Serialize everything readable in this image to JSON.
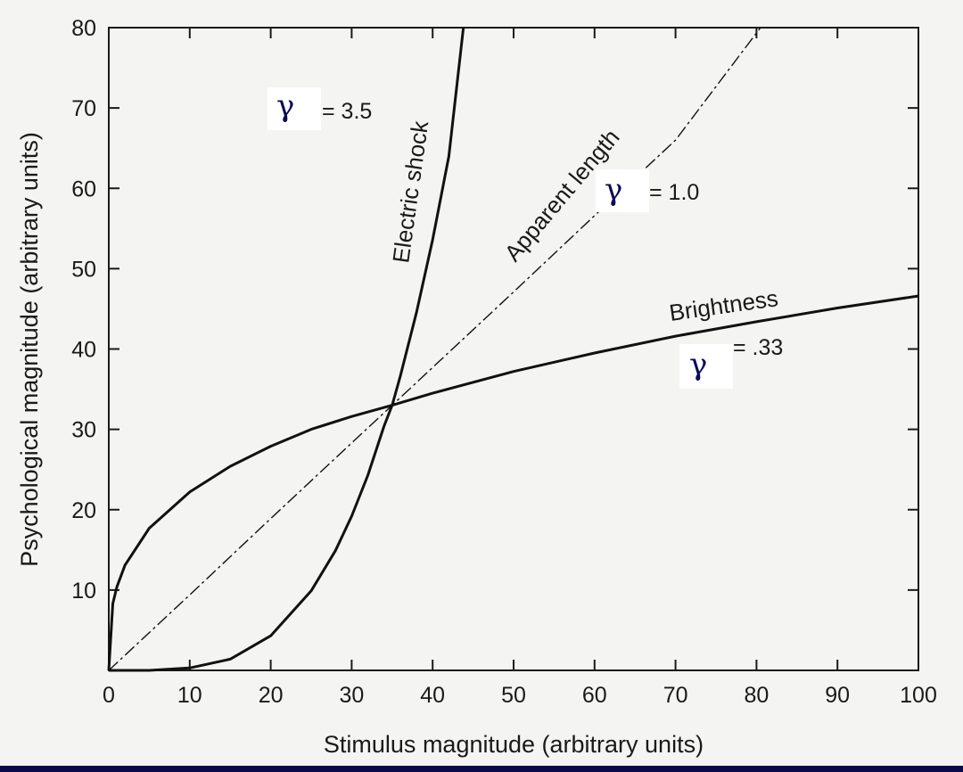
{
  "chart_data": {
    "type": "line",
    "xlabel": "Stimulus magnitude (arbitrary units)",
    "ylabel": "Psychological magnitude (arbitrary units)",
    "xlim": [
      0,
      100
    ],
    "ylim": [
      0,
      80
    ],
    "x_ticks": [
      0,
      10,
      20,
      30,
      40,
      50,
      60,
      70,
      80,
      90,
      100
    ],
    "y_ticks": [
      10,
      20,
      30,
      40,
      50,
      60,
      70,
      80
    ],
    "x_tick_labels": [
      "0",
      "10",
      "20",
      "30",
      "40",
      "50",
      "60",
      "70",
      "80",
      "90",
      "100"
    ],
    "y_tick_labels": [
      "10",
      "20",
      "30",
      "40",
      "50",
      "60",
      "70",
      "80"
    ],
    "grid": false,
    "series": [
      {
        "name": "Electric shock",
        "gamma_symbol": "γ",
        "gamma_value": "= 3.5",
        "exponent": 3.5,
        "style": "solid",
        "x": [
          0,
          5,
          10,
          15,
          20,
          25,
          28,
          30,
          32,
          34,
          35,
          36,
          38,
          40,
          42,
          43.8
        ],
        "y": [
          0,
          0.0,
          0.3,
          1.4,
          4.3,
          9.9,
          14.9,
          19.2,
          24.3,
          30.4,
          33.0,
          36.6,
          44.5,
          53.6,
          64.0,
          80.0
        ]
      },
      {
        "name": "Apparent length",
        "gamma_symbol": "γ",
        "gamma_value": "= 1.0",
        "exponent": 1.0,
        "style": "dashed",
        "x": [
          0,
          10,
          20,
          30,
          35,
          40,
          50,
          60,
          70,
          80.5
        ],
        "y": [
          0,
          9.4,
          18.9,
          28.3,
          33.0,
          37.7,
          47.1,
          56.6,
          66.0,
          80.0
        ]
      },
      {
        "name": "Brightness",
        "gamma_symbol": "γ",
        "gamma_value": "= .33",
        "exponent": 0.33,
        "style": "solid",
        "x": [
          0,
          0.5,
          1,
          2,
          5,
          10,
          15,
          20,
          25,
          30,
          35,
          40,
          50,
          60,
          70,
          80,
          90,
          100
        ],
        "y": [
          0,
          8.3,
          10.4,
          13.1,
          17.7,
          22.2,
          25.4,
          27.9,
          30.0,
          31.6,
          33.0,
          34.5,
          37.2,
          39.5,
          41.6,
          43.4,
          45.1,
          46.6
        ]
      }
    ]
  }
}
